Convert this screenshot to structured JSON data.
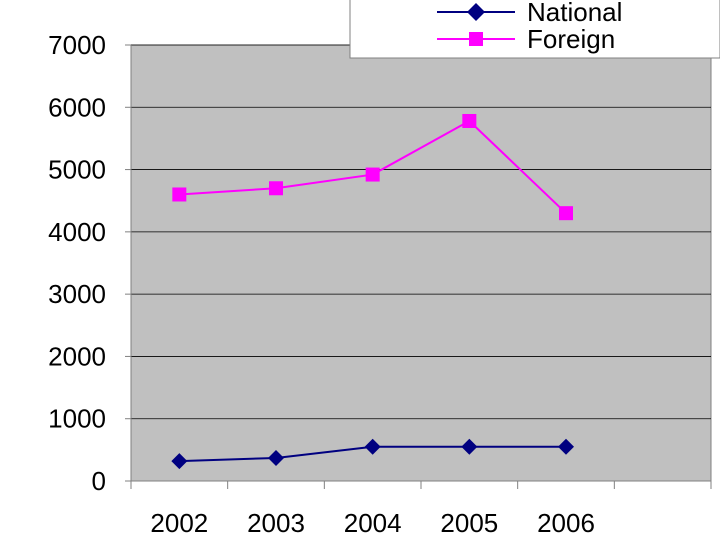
{
  "chart_data": {
    "type": "line",
    "title": "",
    "xlabel": "",
    "ylabel": "",
    "categories": [
      "2002",
      "2003",
      "2004",
      "2005",
      "2006"
    ],
    "ylim": [
      0,
      7000
    ],
    "yticks": [
      0,
      1000,
      2000,
      3000,
      4000,
      5000,
      6000,
      7000
    ],
    "y_tick_labels": [
      "0",
      "1000",
      "2000",
      "3000",
      "4000",
      "5000",
      "6000",
      "7000"
    ],
    "grid": true,
    "legend_position": "top-right",
    "plot_background": "#c0c0c0",
    "series": [
      {
        "name": "National",
        "marker": "diamond",
        "color": "#000080",
        "values": [
          320,
          370,
          550,
          550,
          550
        ]
      },
      {
        "name": "Foreign",
        "marker": "square",
        "color": "#ff00ff",
        "values": [
          4600,
          4700,
          4920,
          5780,
          4300
        ]
      }
    ]
  }
}
